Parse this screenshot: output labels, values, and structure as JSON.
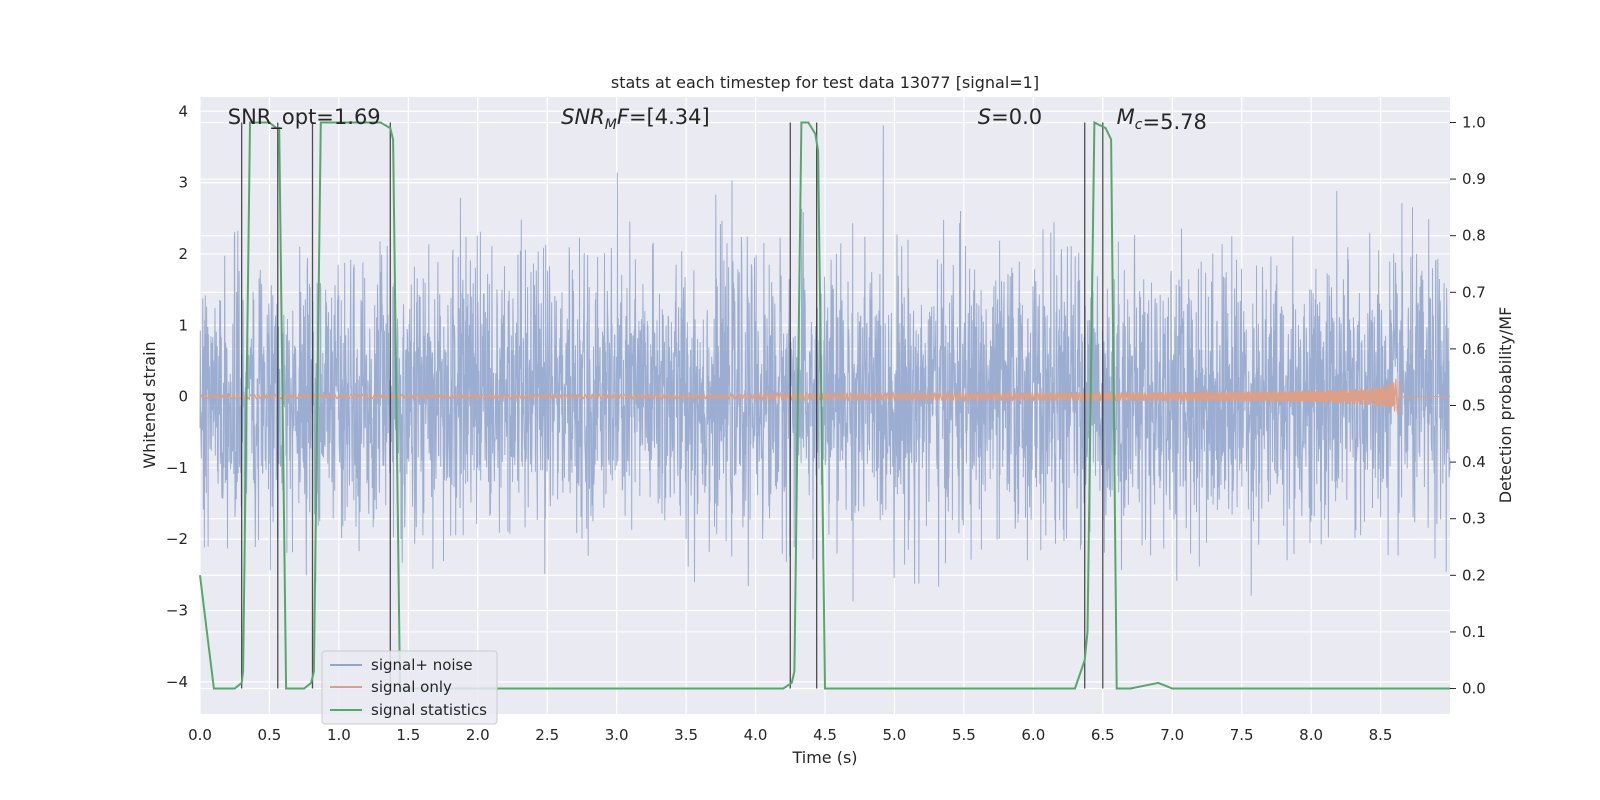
{
  "chart_data": {
    "type": "line",
    "title": "stats at each timestep for test data 13077 [signal=1]",
    "xlabel": "Time (s)",
    "ylabel": "Whitened strain",
    "y2label": "Detection probability/MF",
    "xlim": [
      0.0,
      9.0
    ],
    "ylim": [
      -4.45,
      4.2
    ],
    "y2lim": [
      -0.045,
      1.045
    ],
    "xticks": [
      "0.0",
      "0.5",
      "1.0",
      "1.5",
      "2.0",
      "2.5",
      "3.0",
      "3.5",
      "4.0",
      "4.5",
      "5.0",
      "5.5",
      "6.0",
      "6.5",
      "7.0",
      "7.5",
      "8.0",
      "8.5"
    ],
    "yticks": [
      "−4",
      "−3",
      "−2",
      "−1",
      "0",
      "1",
      "2",
      "3",
      "4"
    ],
    "y2ticks": [
      "0.0",
      "0.1",
      "0.2",
      "0.3",
      "0.4",
      "0.5",
      "0.6",
      "0.7",
      "0.8",
      "0.9",
      "1.0"
    ],
    "grid": true,
    "legend_position": "lower-left",
    "annotations": [
      {
        "prefix": "SNR_opt",
        "value": "=1.69",
        "x": 0.2
      },
      {
        "prefix": "SNR",
        "sub": "M",
        "suffix": "F",
        "value": "=[4.34]",
        "x": 2.6
      },
      {
        "prefix": "S",
        "value": "=0.0",
        "x": 5.6
      },
      {
        "prefix": "M",
        "sub": "c",
        "value": "=5.78",
        "x": 6.6
      }
    ],
    "series": [
      {
        "name": "signal+ noise",
        "color": "#92a6cd",
        "description": "dense whitened noise between about -2.5 and 2.5 with spikes to about -4 and 3.8",
        "extent": [
          0.0,
          9.0
        ]
      },
      {
        "name": "signal only",
        "color": "#dd9f85",
        "description": "chirp near zero growing to amplitude ~0.25 ending around t=8.65",
        "end_x": 8.65
      },
      {
        "name": "signal statistics",
        "color": "#55a868",
        "axis": "right",
        "x": [
          0.0,
          0.05,
          0.1,
          0.2,
          0.25,
          0.3,
          0.31,
          0.36,
          0.5,
          0.55,
          0.57,
          0.62,
          0.75,
          0.8,
          0.82,
          0.87,
          1.0,
          1.2,
          1.3,
          1.37,
          1.39,
          1.44,
          1.6,
          2.0,
          2.5,
          3.0,
          3.5,
          4.0,
          4.2,
          4.26,
          4.28,
          4.33,
          4.38,
          4.43,
          4.45,
          4.5,
          5.0,
          5.5,
          6.0,
          6.3,
          6.37,
          6.39,
          6.44,
          6.52,
          6.56,
          6.6,
          6.7,
          6.8,
          6.9,
          6.95,
          7.0,
          7.5,
          8.0,
          8.5,
          9.0
        ],
        "values": [
          0.2,
          0.1,
          0.0,
          0.0,
          0.0,
          0.01,
          0.03,
          1.0,
          1.0,
          0.99,
          0.99,
          0.0,
          0.0,
          0.01,
          0.03,
          1.0,
          1.0,
          1.0,
          1.0,
          0.99,
          0.97,
          0.0,
          0.0,
          0.0,
          0.0,
          0.0,
          0.0,
          0.0,
          0.0,
          0.01,
          0.03,
          1.0,
          1.0,
          0.98,
          0.95,
          0.0,
          0.0,
          0.0,
          0.0,
          0.0,
          0.05,
          0.1,
          1.0,
          0.99,
          0.97,
          0.0,
          0.0,
          0.005,
          0.01,
          0.005,
          0.0,
          0.0,
          0.0,
          0.0,
          0.0
        ]
      }
    ],
    "vertical_markers_x": [
      0.3,
      0.56,
      0.81,
      1.37,
      4.25,
      4.44,
      6.37,
      6.5
    ]
  }
}
